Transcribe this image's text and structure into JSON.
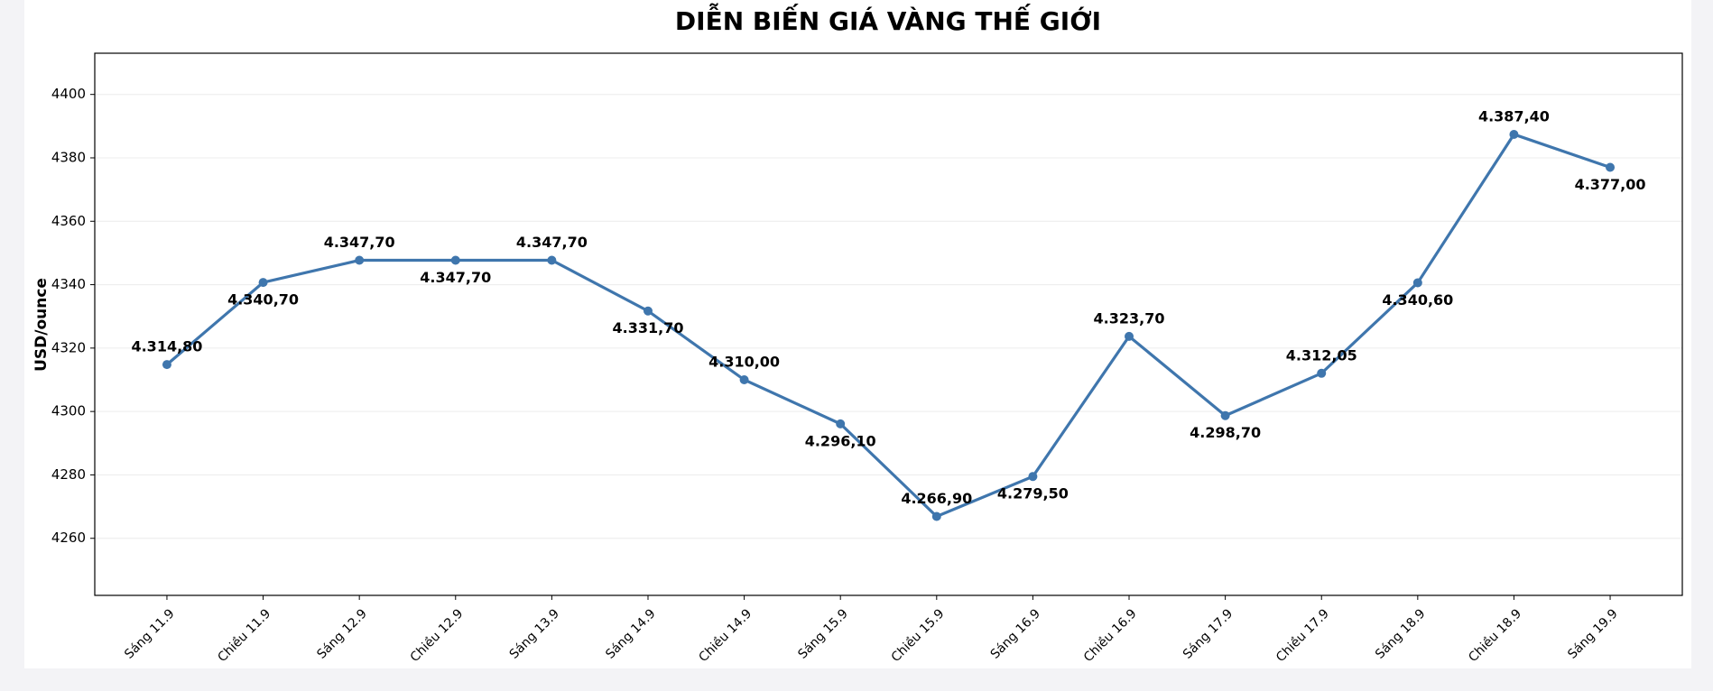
{
  "chart_data": {
    "type": "line",
    "title": "DIỄN BIẾN GIÁ VÀNG THẾ GIỚI",
    "y_label": "USD/ounce",
    "categories": [
      "Sáng 11.9",
      "Chiều 11.9",
      "Sáng 12.9",
      "Chiều 12.9",
      "Sáng 13.9",
      "Sáng 14.9",
      "Chiều 14.9",
      "Sáng 15.9",
      "Chiều 15.9",
      "Sáng 16.9",
      "Chiều 16.9",
      "Sáng 17.9",
      "Chiều 17.9",
      "Sáng 18.9",
      "Chiều 18.9",
      "Sáng 19.9"
    ],
    "values": [
      4314.8,
      4340.7,
      4347.7,
      4347.7,
      4347.7,
      4331.7,
      4310.0,
      4296.1,
      4266.9,
      4279.5,
      4323.7,
      4298.7,
      4312.05,
      4340.6,
      4387.4,
      4377.0
    ],
    "value_labels": [
      "4.314,80",
      "4.340,70",
      "4.347,70",
      "4.347,70",
      "4.347,70",
      "4.331,70",
      "4.310,00",
      "4.296,10",
      "4.266,90",
      "4.279,50",
      "4.323,70",
      "4.298,70",
      "4.312,05",
      "4.340,60",
      "4.387,40",
      "4.377,00"
    ],
    "color": "#3f76ad",
    "ylim": [
      4242,
      4413
    ],
    "yticks": [
      4260,
      4280,
      4300,
      4320,
      4340,
      4360,
      4380,
      4400
    ],
    "grid": true
  }
}
